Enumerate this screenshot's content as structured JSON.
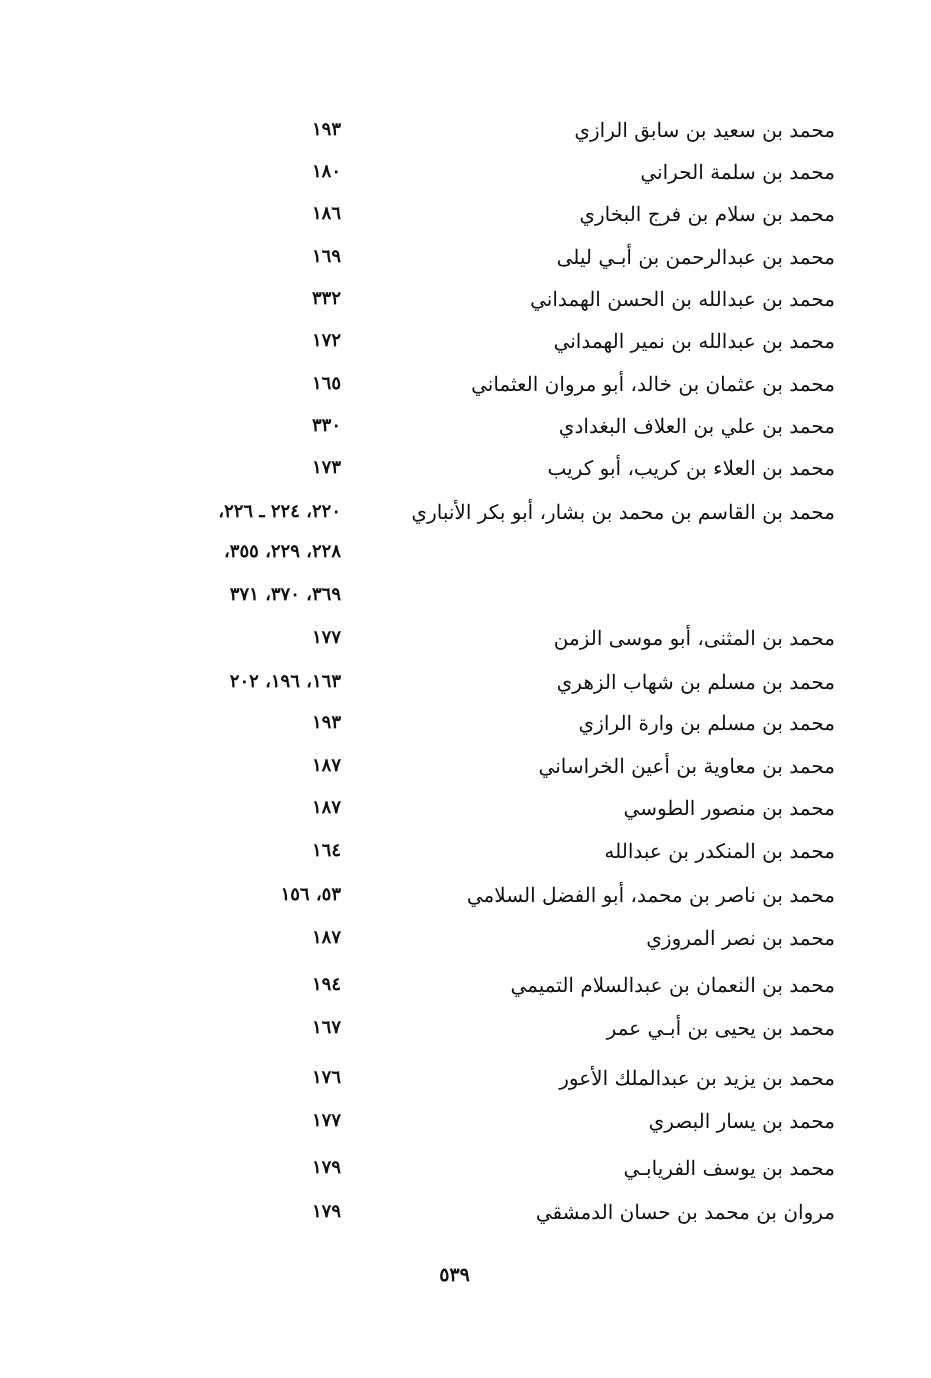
{
  "entries": [
    {
      "name": "محمد بن سعيد بن سابق الرازي",
      "pages": "١٩٣"
    },
    {
      "name": "محمد بن سلمة الحراني",
      "pages": "١٨٠"
    },
    {
      "name": "محمد بن سلام بن فرج البخاري",
      "pages": "١٨٦"
    },
    {
      "name": "محمد بن عبدالرحمن بن أبـي ليلى",
      "pages": "١٦٩"
    },
    {
      "name": "محمد بن عبدالله بن الحسن الهمداني",
      "pages": "٣٣٢"
    },
    {
      "name": "محمد بن عبدالله بن نمير الهمداني",
      "pages": "١٧٢"
    },
    {
      "name": "محمد بن عثمان بن خالد، أبو مروان العثماني",
      "pages": "١٦٥"
    },
    {
      "name": "محمد بن علي بن العلاف البغدادي",
      "pages": "٣٣٠"
    },
    {
      "name": "محمد بن العلاء بن كريب، أبو كريب",
      "pages": "١٧٣"
    },
    {
      "name": "محمد بن القاسم بن محمد بن بشار، أبو بكر الأنباري",
      "pages": "٢٢٠، ٢٢٤ ـ ٢٢٦،"
    },
    {
      "name": "",
      "pages": "٢٢٨، ٢٢٩، ٣٥٥،"
    },
    {
      "name": "",
      "pages": "٣٦٩، ٣٧٠، ٣٧١"
    },
    {
      "name": "محمد بن المثنى، أبو موسى الزمن",
      "pages": "١٧٧"
    },
    {
      "name": "محمد بن مسلم بن شهاب الزهري",
      "pages": "١٦٣، ١٩٦، ٢٠٢"
    },
    {
      "name": "محمد بن مسلم بن وارة الرازي",
      "pages": "١٩٣"
    },
    {
      "name": "محمد بن معاوية بن أعين الخراساني",
      "pages": "١٨٧"
    },
    {
      "name": "محمد بن منصور الطوسي",
      "pages": "١٨٧"
    },
    {
      "name": "محمد بن المنكدر بن عبدالله",
      "pages": "١٦٤"
    },
    {
      "name": "محمد بن ناصر بن محمد، أبو الفضل السلامي",
      "pages": "٥٣، ١٥٦"
    },
    {
      "name": "محمد بن نصر المروزي",
      "pages": "١٨٧"
    },
    {
      "name": "محمد بن النعمان بن عبدالسلام التميمي",
      "pages": "١٩٤"
    },
    {
      "name": "محمد بن يحيى بن أبـي عمر",
      "pages": "١٦٧"
    },
    {
      "name": "محمد بن يزيد بن عبدالملك الأعور",
      "pages": "١٧٦"
    },
    {
      "name": "محمد بن يسار البصري",
      "pages": "١٧٧"
    },
    {
      "name": "محمد بن يوسف الفريابـي",
      "pages": "١٧٩"
    },
    {
      "name": "مروان بن محمد بن حسان الدمشقي",
      "pages": "١٧٩"
    }
  ],
  "page_number": "٥٣٩"
}
